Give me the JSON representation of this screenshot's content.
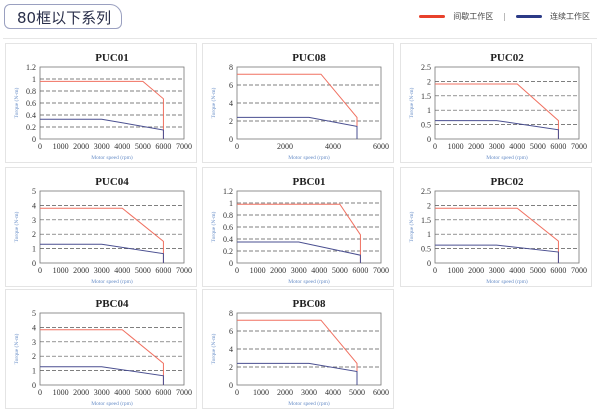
{
  "header": {
    "title": "80框以下系列"
  },
  "legend": [
    {
      "label": "间歇工作区",
      "color": "#e8412b"
    },
    {
      "label": "连续工作区",
      "color": "#2b3a86"
    }
  ],
  "colors": {
    "intermittent": "#f07060",
    "continuous": "#4a4f90",
    "axis_label": "#6a8fc8"
  },
  "chart_data": [
    {
      "type": "line",
      "title": "PUC01",
      "xlabel": "Motor speed (rpm)",
      "ylabel": "Torque (N-m)",
      "xlim": [
        0,
        7000
      ],
      "xticks": [
        0,
        1000,
        2000,
        3000,
        4000,
        5000,
        6000,
        7000
      ],
      "ylim": [
        0,
        1.2
      ],
      "yticks": [
        0,
        0.2,
        0.4,
        0.6,
        0.8,
        1,
        1.2
      ],
      "grid": [
        0.2,
        0.4,
        0.6,
        0.8,
        1
      ],
      "series": [
        {
          "name": "间歇工作区",
          "x": [
            0,
            5000,
            6000,
            6000
          ],
          "y": [
            0.96,
            0.96,
            0.67,
            0
          ]
        },
        {
          "name": "连续工作区",
          "x": [
            0,
            3000,
            6000,
            6000
          ],
          "y": [
            0.33,
            0.33,
            0.15,
            0
          ]
        }
      ]
    },
    {
      "type": "line",
      "title": "PUC08",
      "xlabel": "Motor speed (rpm)",
      "ylabel": "Torque (N-m)",
      "xlim": [
        0,
        6000
      ],
      "xticks": [
        0,
        2000,
        4000,
        6000
      ],
      "ylim": [
        0,
        8
      ],
      "yticks": [
        0,
        2,
        4,
        6,
        8
      ],
      "grid": [
        2,
        4,
        6
      ],
      "series": [
        {
          "name": "间歇工作区",
          "x": [
            0,
            3500,
            5000,
            5000
          ],
          "y": [
            7.2,
            7.2,
            2.4,
            0
          ]
        },
        {
          "name": "连续工作区",
          "x": [
            0,
            3000,
            5000,
            5000
          ],
          "y": [
            2.4,
            2.4,
            1.4,
            0
          ]
        }
      ]
    },
    {
      "type": "line",
      "title": "PUC02",
      "xlabel": "Motor speed (rpm)",
      "ylabel": "Torque (N-m)",
      "xlim": [
        0,
        7000
      ],
      "xticks": [
        0,
        1000,
        2000,
        3000,
        4000,
        5000,
        6000,
        7000
      ],
      "ylim": [
        0,
        2.5
      ],
      "yticks": [
        0,
        0.5,
        1,
        1.5,
        2,
        2.5
      ],
      "grid": [
        0.5,
        1,
        1.5,
        2
      ],
      "series": [
        {
          "name": "间歇工作区",
          "x": [
            0,
            4000,
            6000,
            6000
          ],
          "y": [
            1.91,
            1.91,
            0.64,
            0
          ]
        },
        {
          "name": "连续工作区",
          "x": [
            0,
            3000,
            6000,
            6000
          ],
          "y": [
            0.64,
            0.64,
            0.32,
            0
          ]
        }
      ]
    },
    {
      "type": "line",
      "title": "PUC04",
      "xlabel": "Motor speed (rpm)",
      "ylabel": "Torque (N-m)",
      "xlim": [
        0,
        7000
      ],
      "xticks": [
        0,
        1000,
        2000,
        3000,
        4000,
        5000,
        6000,
        7000
      ],
      "ylim": [
        0,
        5
      ],
      "yticks": [
        0,
        1,
        2,
        3,
        4,
        5
      ],
      "grid": [
        1,
        2,
        3,
        4
      ],
      "series": [
        {
          "name": "间歇工作区",
          "x": [
            0,
            4000,
            6000,
            6000
          ],
          "y": [
            3.8,
            3.8,
            1.5,
            0
          ]
        },
        {
          "name": "连续工作区",
          "x": [
            0,
            3000,
            6000,
            6000
          ],
          "y": [
            1.3,
            1.3,
            0.65,
            0
          ]
        }
      ]
    },
    {
      "type": "line",
      "title": "PBC01",
      "xlabel": "Motor speed (rpm)",
      "ylabel": "Torque (N-m)",
      "xlim": [
        0,
        7000
      ],
      "xticks": [
        0,
        1000,
        2000,
        3000,
        4000,
        5000,
        6000,
        7000
      ],
      "ylim": [
        0,
        1.2
      ],
      "yticks": [
        0,
        0.2,
        0.4,
        0.6,
        0.8,
        1,
        1.2
      ],
      "grid": [
        0.2,
        0.4,
        0.6,
        0.8,
        1
      ],
      "series": [
        {
          "name": "间歇工作区",
          "x": [
            0,
            5000,
            6000,
            6000
          ],
          "y": [
            0.98,
            0.98,
            0.47,
            0
          ]
        },
        {
          "name": "连续工作区",
          "x": [
            0,
            3000,
            6000,
            6000
          ],
          "y": [
            0.35,
            0.35,
            0.13,
            0
          ]
        }
      ]
    },
    {
      "type": "line",
      "title": "PBC02",
      "xlabel": "Motor speed (rpm)",
      "ylabel": "Torque (N-m)",
      "xlim": [
        0,
        7000
      ],
      "xticks": [
        0,
        1000,
        2000,
        3000,
        4000,
        5000,
        6000,
        7000
      ],
      "ylim": [
        0,
        2.5
      ],
      "yticks": [
        0,
        0.5,
        1,
        1.5,
        2,
        2.5
      ],
      "grid": [
        0.5,
        1,
        1.5,
        2
      ],
      "series": [
        {
          "name": "间歇工作区",
          "x": [
            0,
            4000,
            6000,
            6000
          ],
          "y": [
            1.9,
            1.9,
            0.76,
            0
          ]
        },
        {
          "name": "连续工作区",
          "x": [
            0,
            3000,
            6000,
            6000
          ],
          "y": [
            0.62,
            0.62,
            0.38,
            0
          ]
        }
      ]
    },
    {
      "type": "line",
      "title": "PBC04",
      "xlabel": "Motor speed (rpm)",
      "ylabel": "Torque (N-m)",
      "xlim": [
        0,
        7000
      ],
      "xticks": [
        0,
        1000,
        2000,
        3000,
        4000,
        5000,
        6000,
        7000
      ],
      "ylim": [
        0,
        5
      ],
      "yticks": [
        0,
        1,
        2,
        3,
        4,
        5
      ],
      "grid": [
        1,
        2,
        3,
        4
      ],
      "series": [
        {
          "name": "间歇工作区",
          "x": [
            0,
            4000,
            6000,
            6000
          ],
          "y": [
            3.84,
            3.84,
            1.5,
            0
          ]
        },
        {
          "name": "连续工作区",
          "x": [
            0,
            3000,
            6000,
            6000
          ],
          "y": [
            1.27,
            1.27,
            0.64,
            0
          ]
        }
      ]
    },
    {
      "type": "line",
      "title": "PBC08",
      "xlabel": "Motor speed (rpm)",
      "ylabel": "Torque (N-m)",
      "xlim": [
        0,
        6000
      ],
      "xticks": [
        0,
        1000,
        2000,
        3000,
        4000,
        5000,
        6000
      ],
      "ylim": [
        0,
        8
      ],
      "yticks": [
        0,
        2,
        4,
        6,
        8
      ],
      "grid": [
        2,
        4,
        6
      ],
      "series": [
        {
          "name": "间歇工作区",
          "x": [
            0,
            3500,
            5000,
            5000
          ],
          "y": [
            7.2,
            7.2,
            2.4,
            0
          ]
        },
        {
          "name": "连续工作区",
          "x": [
            0,
            3000,
            5000,
            5000
          ],
          "y": [
            2.4,
            2.4,
            1.5,
            0
          ]
        }
      ]
    }
  ]
}
